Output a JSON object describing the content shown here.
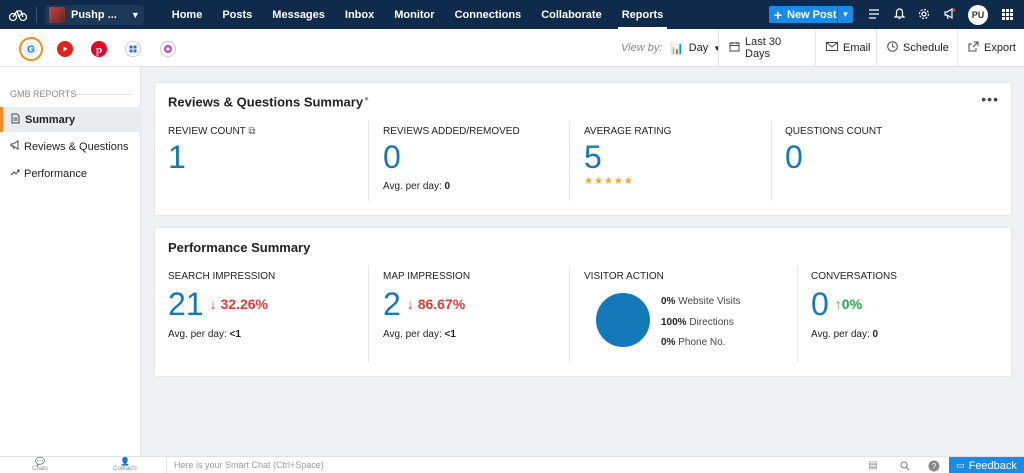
{
  "nav": {
    "brand_name": "Pushp ...",
    "links": [
      "Home",
      "Posts",
      "Messages",
      "Inbox",
      "Monitor",
      "Connections",
      "Collaborate",
      "Reports"
    ],
    "active": "Reports",
    "new_post": "New Post",
    "avatar_initials": "PU"
  },
  "toolbar": {
    "view_by_label": "View by:",
    "view_by_value": "Day",
    "date_range": "Last 30 Days",
    "email": "Email",
    "schedule": "Schedule",
    "export": "Export"
  },
  "sidebar": {
    "heading": "GMB REPORTS",
    "items": [
      {
        "label": "Summary",
        "icon": "document-icon",
        "active": true
      },
      {
        "label": "Reviews & Questions",
        "icon": "megaphone-icon",
        "active": false
      },
      {
        "label": "Performance",
        "icon": "trend-up-icon",
        "active": false
      }
    ]
  },
  "reviews": {
    "title": "Reviews & Questions Summary",
    "review_count": {
      "label": "REVIEW COUNT",
      "value": "1"
    },
    "added_removed": {
      "label": "REVIEWS ADDED/REMOVED",
      "value": "0",
      "avg_label": "Avg. per day:",
      "avg_value": "0"
    },
    "avg_rating": {
      "label": "AVERAGE RATING",
      "value": "5",
      "stars": 5
    },
    "questions": {
      "label": "QUESTIONS COUNT",
      "value": "0"
    }
  },
  "performance": {
    "title": "Performance Summary",
    "search": {
      "label": "SEARCH IMPRESSION",
      "value": "21",
      "delta": "32.26%",
      "avg_label": "Avg. per day:",
      "avg_value": "<1"
    },
    "map": {
      "label": "MAP IMPRESSION",
      "value": "2",
      "delta": "86.67%",
      "avg_label": "Avg. per day:",
      "avg_value": "<1"
    },
    "visitor": {
      "label": "VISITOR ACTION",
      "rows": [
        {
          "pct": "0%",
          "label": "Website Visits"
        },
        {
          "pct": "100%",
          "label": "Directions"
        },
        {
          "pct": "0%",
          "label": "Phone No."
        }
      ]
    },
    "conversations": {
      "label": "CONVERSATIONS",
      "value": "0",
      "delta": "0%",
      "avg_label": "Avg. per day:",
      "avg_value": "0"
    }
  },
  "bottom": {
    "chats": "Chats",
    "contacts": "Contacts",
    "smartchat_placeholder": "Here is your Smart Chat (Ctrl+Space)",
    "feedback": "Feedback"
  },
  "colors": {
    "nav_bg": "#0f2a4a",
    "accent": "#1479b8",
    "orange": "#f58a1f",
    "down": "#e53935",
    "up": "#22a845",
    "cta": "#1a8be6"
  }
}
